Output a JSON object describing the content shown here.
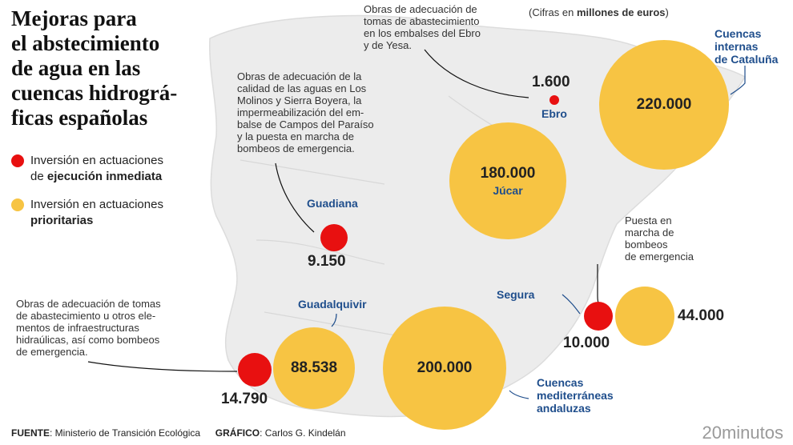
{
  "title": [
    "Mejoras para",
    "el abstecimiento",
    "de agua en las",
    "cuencas hidrográ-",
    "ficas españolas"
  ],
  "legend": {
    "immediate": {
      "text": "Inversión en actuaciones",
      "bold": "ejecución inmediata",
      "prefix": "de ",
      "color": "#e81010"
    },
    "priority": {
      "text": "Inversión en actuaciones",
      "bold": "prioritarias",
      "color": "#f7c443"
    }
  },
  "unit_note": {
    "prefix": "(Cifras en ",
    "bold": "millones de euros",
    "suffix": ")"
  },
  "regions": {
    "ebro": {
      "label": "Ebro",
      "red_value": "1.600"
    },
    "cataluna": {
      "label": [
        "Cuencas",
        "internas",
        "de Cataluña"
      ],
      "yellow_value": "220.000"
    },
    "jucar": {
      "label": "Júcar",
      "yellow_value": "180.000"
    },
    "guadiana": {
      "label": "Guadiana",
      "red_value": "9.150"
    },
    "segura": {
      "label": "Segura",
      "red_value": "10.000",
      "yellow_value": "44.000"
    },
    "guadalquivir": {
      "label": "Guadalquivir",
      "red_value": "14.790",
      "yellow_value": "88.538"
    },
    "andaluzas": {
      "label": [
        "Cuencas",
        "mediterráneas",
        "andaluzas"
      ],
      "yellow_value": "200.000"
    }
  },
  "notes": {
    "ebro": [
      "Obras de adecuación de",
      "tomas de abastecimiento",
      "en los embalses del Ebro",
      "y de Yesa."
    ],
    "guadiana": [
      "Obras de adecuación de la",
      "calidad de las aguas en Los",
      "Molinos y Sierra Boyera, la",
      "impermeabilización del em-",
      "balse de Campos del Paraíso",
      "y la puesta en marcha de",
      "bombeos de emergencia."
    ],
    "segura": [
      "Puesta en",
      "marcha de",
      "bombeos",
      "de emergencia"
    ],
    "guadalquivir": [
      "Obras de adecuación de tomas",
      "de abastecimiento u otros ele-",
      "mentos de infraestructuras",
      "hidraúlicas, así como bombeos",
      "de emergencia."
    ]
  },
  "footer": {
    "source_label": "FUENTE",
    "source": ": Ministerio de Transición Ecológica",
    "graphic_label": "GRÁFICO",
    "graphic": ": Carlos G. Kindelán"
  },
  "brand": "20minutos"
}
